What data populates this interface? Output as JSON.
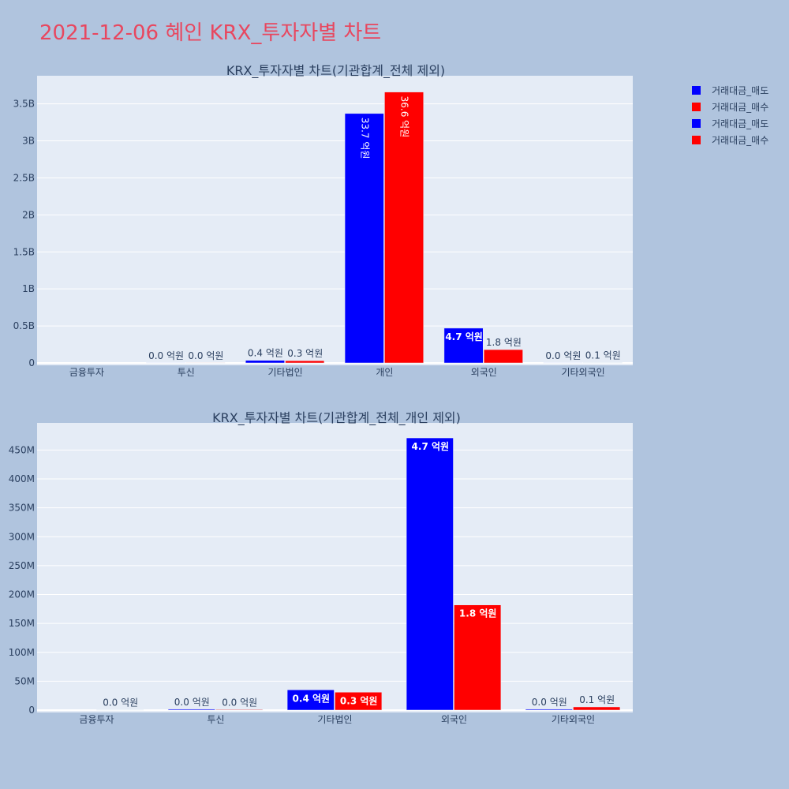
{
  "page": {
    "title": "2021-12-06 혜인 KRX_투자자별 차트",
    "background": "#b0c4de",
    "plot_background": "#e5ecf6",
    "title_color": "#e8475f"
  },
  "legend": {
    "placement": "top-right",
    "items": [
      {
        "label": "거래대금_매도",
        "color": "#0000ff"
      },
      {
        "label": "거래대금_매수",
        "color": "#ff0000"
      },
      {
        "label": "거래대금_매도",
        "color": "#0000ff"
      },
      {
        "label": "거래대금_매수",
        "color": "#ff0000"
      }
    ]
  },
  "chart_data": [
    {
      "type": "bar",
      "title": "KRX_투자자별 차트(기관합계_전체 제외)",
      "categories": [
        "금융투자",
        "투신",
        "기타법인",
        "개인",
        "외국인",
        "기타외국인"
      ],
      "ylim": [
        0,
        3880000000
      ],
      "yticks": [
        0,
        500000000,
        1000000000,
        1500000000,
        2000000000,
        2500000000,
        3000000000,
        3500000000
      ],
      "ytick_labels": [
        "0",
        "0.5B",
        "1B",
        "1.5B",
        "2B",
        "2.5B",
        "3B",
        "3.5B"
      ],
      "grid": true,
      "series": [
        {
          "name": "거래대금_매도",
          "color": "#0000ff",
          "values": [
            0,
            1000000,
            35000000,
            3370000000,
            470000000,
            1000000
          ],
          "labels": [
            "",
            "0.0 억원",
            "0.4 억원",
            "33.7 억원",
            "4.7 억원",
            "0.0 억원"
          ]
        },
        {
          "name": "거래대금_매수",
          "color": "#ff0000",
          "values": [
            0,
            1000000,
            30000000,
            3660000000,
            180000000,
            5000000
          ],
          "labels": [
            "",
            "0.0 억원",
            "0.3 억원",
            "36.6 억원",
            "1.8 억원",
            "0.1 억원"
          ]
        }
      ]
    },
    {
      "type": "bar",
      "title": "KRX_투자자별 차트(기관합계_전체_개인 제외)",
      "categories": [
        "금융투자",
        "투신",
        "기타법인",
        "외국인",
        "기타외국인"
      ],
      "ylim": [
        0,
        497000000
      ],
      "yticks": [
        0,
        50000000,
        100000000,
        150000000,
        200000000,
        250000000,
        300000000,
        350000000,
        400000000,
        450000000
      ],
      "ytick_labels": [
        "0",
        "50M",
        "100M",
        "150M",
        "200M",
        "250M",
        "300M",
        "350M",
        "400M",
        "450M"
      ],
      "grid": true,
      "series": [
        {
          "name": "거래대금_매도",
          "color": "#0000ff",
          "values": [
            0,
            1500000,
            35000000,
            471000000,
            1500000
          ],
          "labels": [
            "",
            "0.0 억원",
            "0.4 억원",
            "4.7 억원",
            "0.0 억원"
          ]
        },
        {
          "name": "거래대금_매수",
          "color": "#ff0000",
          "values": [
            500000,
            1000000,
            31000000,
            182000000,
            5500000
          ],
          "labels": [
            "0.0 억원",
            "0.0 억원",
            "0.3 억원",
            "1.8 억원",
            "0.1 억원"
          ]
        }
      ]
    }
  ]
}
